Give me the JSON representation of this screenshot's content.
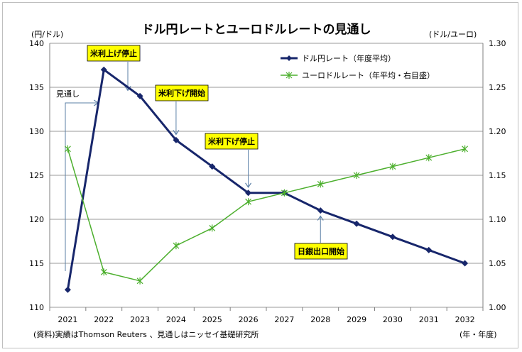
{
  "chart_data": {
    "type": "line",
    "title": "ドル円レートとユーロドルレートの見通し",
    "left_unit": "(円/ドル)",
    "right_unit": "(ドル/ユーロ)",
    "x_unit": "(年・年度)",
    "source_note": "(資料)実績はThomson Reuters 、見通しはニッセイ基礎研究所",
    "categories": [
      "2021",
      "2022",
      "2023",
      "2024",
      "2025",
      "2026",
      "2027",
      "2028",
      "2029",
      "2030",
      "2031",
      "2032"
    ],
    "y_left": {
      "min": 110,
      "max": 140,
      "step": 5,
      "ticks": [
        "110",
        "115",
        "120",
        "125",
        "130",
        "135",
        "140"
      ]
    },
    "y_right": {
      "min": 1.0,
      "max": 1.3,
      "step": 0.05,
      "ticks": [
        "1.00",
        "1.05",
        "1.10",
        "1.15",
        "1.20",
        "1.25",
        "1.30"
      ]
    },
    "grid": "horizontal",
    "legend_position": "top-right",
    "series": [
      {
        "name": "ドル円レート（年度平均）",
        "axis": "left",
        "color": "#17266b",
        "marker": "diamond",
        "values": [
          112,
          137,
          134,
          129,
          126,
          123,
          123,
          121,
          119.5,
          118,
          116.5,
          115
        ]
      },
      {
        "name": "ユーロドルレート（年平均・右目盛）",
        "axis": "right",
        "color": "#4caf2d",
        "marker": "asterisk",
        "values": [
          1.18,
          1.04,
          1.03,
          1.07,
          1.09,
          1.12,
          1.13,
          1.14,
          1.15,
          1.16,
          1.17,
          1.18
        ]
      }
    ],
    "annotations": [
      {
        "text": "見通し",
        "boxed": false,
        "target_index": 1,
        "target_value": 134,
        "style": "bracket"
      },
      {
        "text": "米利上げ停止",
        "boxed": true,
        "target_index": 2,
        "target_value": 134,
        "style": "down-arrow"
      },
      {
        "text": "米利下げ開始",
        "boxed": true,
        "target_index": 3,
        "target_value": 129,
        "style": "down-arrow"
      },
      {
        "text": "米利下げ停止",
        "boxed": true,
        "target_index": 5,
        "target_value": 123,
        "style": "down-arrow"
      },
      {
        "text": "日銀出口開始",
        "boxed": true,
        "target_index": 7,
        "target_value": 121,
        "style": "up-arrow"
      }
    ]
  }
}
